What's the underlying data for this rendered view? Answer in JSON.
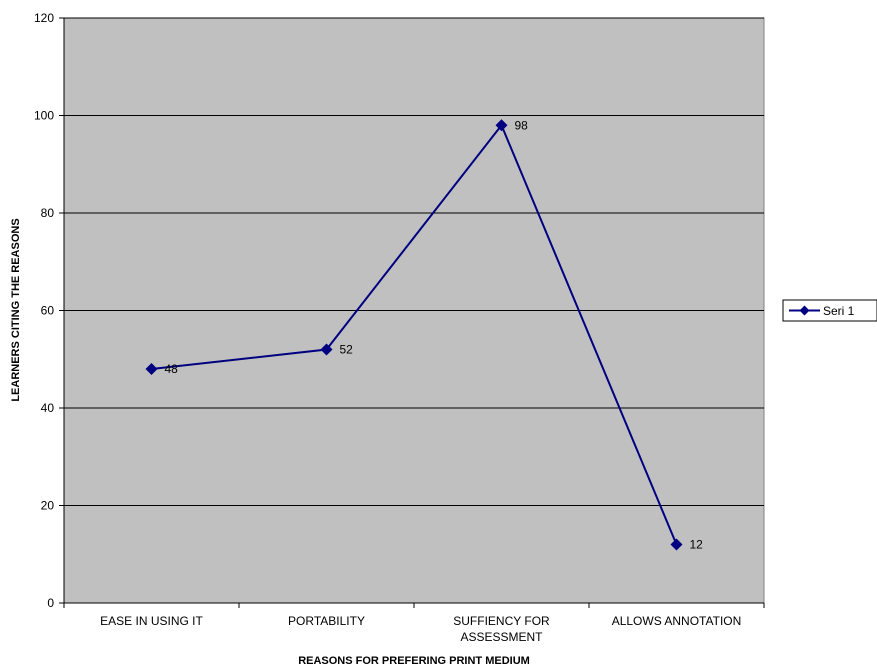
{
  "chart_data": {
    "type": "line",
    "categories": [
      [
        "EASE IN USING IT"
      ],
      [
        "PORTABILITY"
      ],
      [
        "SUFFIENCY FOR",
        "ASSESSMENT"
      ],
      [
        "ALLOWS ANNOTATION"
      ]
    ],
    "series": [
      {
        "name": "Seri 1",
        "values": [
          48,
          52,
          98,
          12
        ],
        "data_labels": [
          "48",
          "52",
          "98",
          "12"
        ],
        "color": "#000080"
      }
    ],
    "xlabel": "REASONS FOR PREFERING PRINT MEDIUM",
    "ylabel": "LEARNERS CITING THE REASONS",
    "ylim": [
      0,
      120
    ],
    "yticks": [
      0,
      20,
      40,
      60,
      80,
      100,
      120
    ],
    "grid": true,
    "plot_background": "#c0c0c0",
    "legend_position": "right"
  }
}
